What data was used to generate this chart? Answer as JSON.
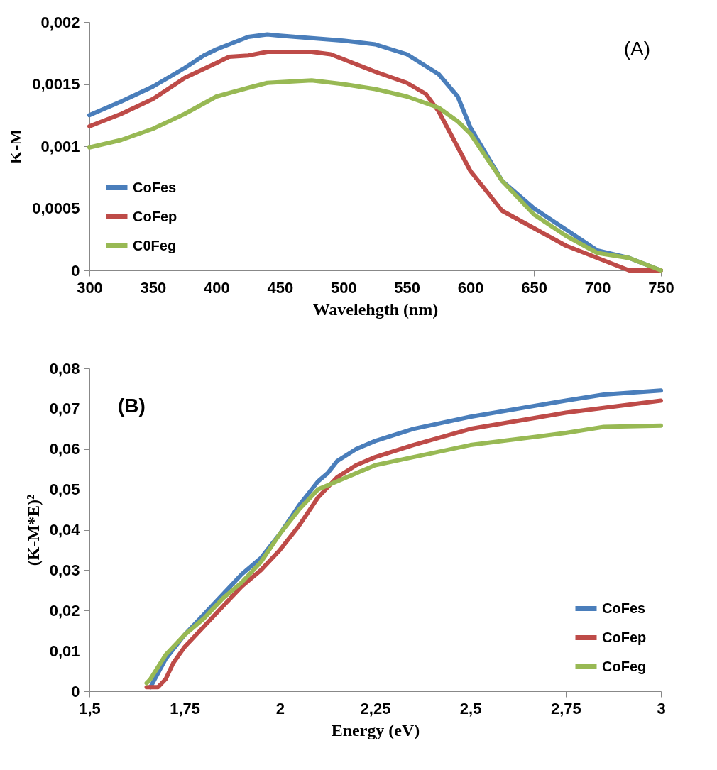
{
  "chart_data": [
    {
      "type": "line",
      "xlabel": "Wavelehgth (nm)",
      "ylabel": "K-M",
      "annotations": [
        "(A)"
      ],
      "legend": "bottom left",
      "grid": false,
      "xlim": [
        300,
        750
      ],
      "xticks": [
        300,
        350,
        400,
        450,
        500,
        550,
        600,
        650,
        700,
        750
      ],
      "ylim": [
        0,
        0.002
      ],
      "yticks": [
        0,
        {
          "value": 0.0005,
          "label": "0,0005"
        },
        {
          "value": 0.001,
          "label": "0,001"
        },
        {
          "value": 0.0015,
          "label": "0,0015"
        },
        {
          "value": 0.002,
          "label": "0,002"
        }
      ],
      "series": [
        {
          "name": "CoFes",
          "color": "#4a7ebb",
          "x": [
            300,
            325,
            350,
            375,
            390,
            400,
            425,
            440,
            450,
            500,
            525,
            550,
            575,
            590,
            600,
            625,
            650,
            675,
            700,
            725,
            750
          ],
          "values": [
            0.00125,
            0.00136,
            0.00148,
            0.00163,
            0.00173,
            0.00178,
            0.00188,
            0.0019,
            0.00189,
            0.00185,
            0.00182,
            0.00174,
            0.00158,
            0.0014,
            0.00115,
            0.00072,
            0.0005,
            0.00033,
            0.00016,
            0.0001,
            0
          ]
        },
        {
          "name": "CoFep",
          "color": "#be4b48",
          "x": [
            300,
            325,
            350,
            375,
            400,
            410,
            425,
            440,
            475,
            490,
            510,
            525,
            550,
            565,
            575,
            600,
            625,
            650,
            675,
            700,
            725,
            750
          ],
          "values": [
            0.00116,
            0.00126,
            0.00138,
            0.00155,
            0.00167,
            0.00172,
            0.00173,
            0.00176,
            0.00176,
            0.00174,
            0.00166,
            0.0016,
            0.00151,
            0.00142,
            0.00128,
            0.0008,
            0.00048,
            0.00034,
            0.0002,
            0.0001,
            0,
            0
          ]
        },
        {
          "name": "C0Feg",
          "color": "#98b954",
          "x": [
            300,
            325,
            350,
            375,
            400,
            425,
            440,
            475,
            500,
            525,
            550,
            575,
            590,
            600,
            625,
            650,
            675,
            700,
            725,
            750
          ],
          "values": [
            0.00099,
            0.00105,
            0.00114,
            0.00126,
            0.0014,
            0.00147,
            0.00151,
            0.00153,
            0.0015,
            0.00146,
            0.0014,
            0.00131,
            0.0012,
            0.0011,
            0.00072,
            0.00045,
            0.00028,
            0.00014,
            0.0001,
            0
          ]
        }
      ]
    },
    {
      "type": "line",
      "xlabel": "Energy (eV)",
      "ylabel": "(K-M*E)²",
      "annotations": [
        "(B)"
      ],
      "legend": "bottom right",
      "grid": false,
      "xlim": [
        1.5,
        3
      ],
      "xticks": [
        {
          "value": 1.5,
          "label": "1,5"
        },
        {
          "value": 1.75,
          "label": "1,75"
        },
        2,
        {
          "value": 2.25,
          "label": "2,25"
        },
        {
          "value": 2.5,
          "label": "2,5"
        },
        {
          "value": 2.75,
          "label": "2,75"
        },
        3
      ],
      "ylim": [
        0,
        0.08
      ],
      "yticks": [
        0,
        {
          "value": 0.01,
          "label": "0,01"
        },
        {
          "value": 0.02,
          "label": "0,02"
        },
        {
          "value": 0.03,
          "label": "0,03"
        },
        {
          "value": 0.04,
          "label": "0,04"
        },
        {
          "value": 0.05,
          "label": "0,05"
        },
        {
          "value": 0.06,
          "label": "0,06"
        },
        {
          "value": 0.07,
          "label": "0,07"
        },
        {
          "value": 0.08,
          "label": "0,08"
        }
      ],
      "series": [
        {
          "name": "CoFes",
          "color": "#4a7ebb",
          "x": [
            1.66,
            1.7,
            1.75,
            1.8,
            1.85,
            1.9,
            1.95,
            2.0,
            2.05,
            2.1,
            2.125,
            2.15,
            2.2,
            2.25,
            2.35,
            2.5,
            2.75,
            2.85,
            3.0
          ],
          "values": [
            0.001,
            0.008,
            0.014,
            0.019,
            0.024,
            0.029,
            0.033,
            0.039,
            0.046,
            0.052,
            0.054,
            0.057,
            0.06,
            0.062,
            0.065,
            0.068,
            0.072,
            0.0735,
            0.0745
          ]
        },
        {
          "name": "CoFep",
          "color": "#be4b48",
          "x": [
            1.65,
            1.68,
            1.7,
            1.72,
            1.75,
            1.8,
            1.85,
            1.9,
            1.95,
            2.0,
            2.05,
            2.1,
            2.15,
            2.2,
            2.25,
            2.35,
            2.5,
            2.75,
            3.0
          ],
          "values": [
            0.001,
            0.001,
            0.003,
            0.007,
            0.011,
            0.016,
            0.021,
            0.026,
            0.03,
            0.035,
            0.041,
            0.048,
            0.053,
            0.056,
            0.058,
            0.061,
            0.065,
            0.069,
            0.072
          ]
        },
        {
          "name": "CoFeg",
          "color": "#98b954",
          "x": [
            1.65,
            1.66,
            1.68,
            1.7,
            1.75,
            1.8,
            1.85,
            1.9,
            1.95,
            2.0,
            2.05,
            2.1,
            2.15,
            2.2,
            2.25,
            2.35,
            2.5,
            2.75,
            2.85,
            3.0
          ],
          "values": [
            0.002,
            0.003,
            0.006,
            0.009,
            0.014,
            0.018,
            0.023,
            0.027,
            0.032,
            0.039,
            0.045,
            0.05,
            0.052,
            0.054,
            0.056,
            0.058,
            0.061,
            0.064,
            0.0655,
            0.0658
          ]
        }
      ]
    }
  ]
}
